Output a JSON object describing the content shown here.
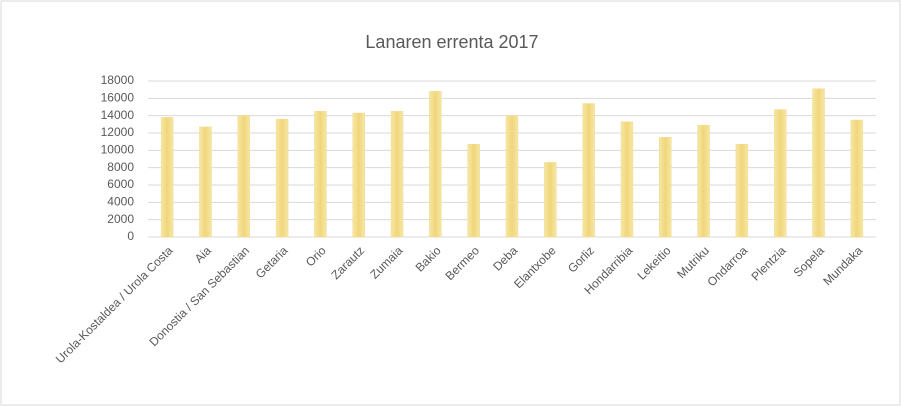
{
  "chart_data": {
    "type": "bar",
    "title": "Lanaren errenta 2017",
    "categories": [
      "Urola-Kostaldea / Urola Costa",
      "Aia",
      "Donostia / San Sebastian",
      "Getaria",
      "Orio",
      "Zarautz",
      "Zumaia",
      "Bakio",
      "Bermeo",
      "Deba",
      "Elantxobe",
      "Gorliz",
      "Hondarribia",
      "Lekeitio",
      "Mutriku",
      "Ondarroa",
      "Plentzia",
      "Sopela",
      "Mundaka"
    ],
    "values": [
      13800,
      12700,
      14000,
      13600,
      14500,
      14300,
      14500,
      16800,
      10700,
      14000,
      8600,
      15400,
      13300,
      11500,
      12900,
      10700,
      14700,
      17100,
      13500
    ],
    "color": "#f3dc8c",
    "ylim": [
      0,
      18000
    ],
    "yticks": [
      0,
      2000,
      4000,
      6000,
      8000,
      10000,
      12000,
      14000,
      16000,
      18000
    ],
    "grid": true
  }
}
